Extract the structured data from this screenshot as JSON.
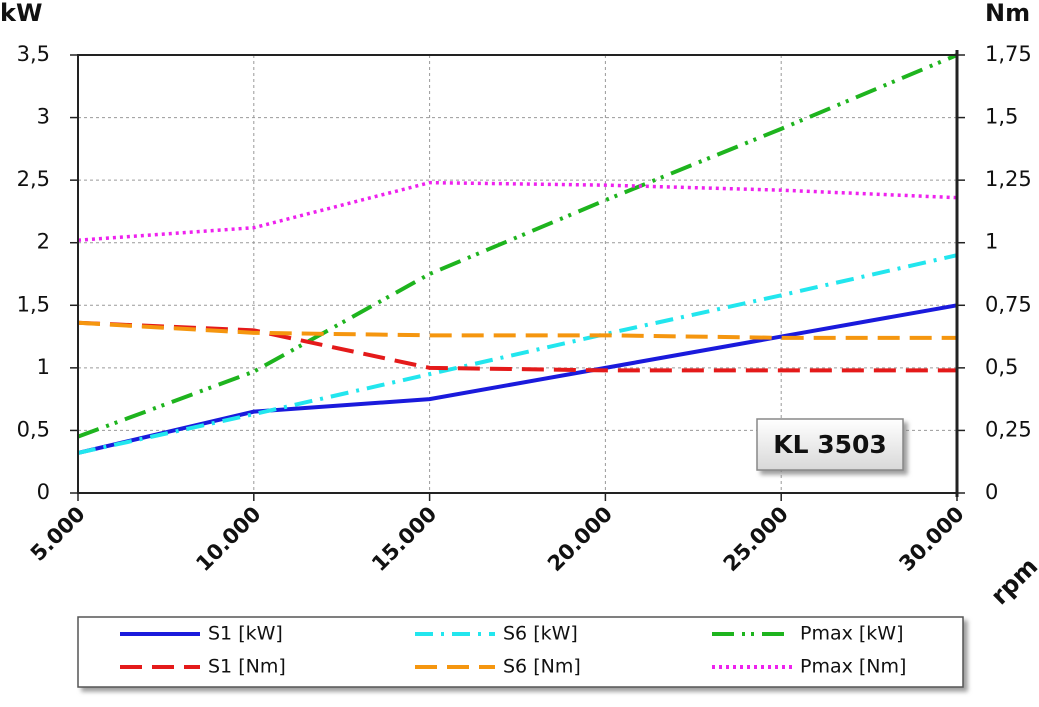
{
  "chart_data": {
    "type": "line",
    "y_label": "kW",
    "y2_label": "Nm",
    "x_label": "rpm",
    "annotation": "KL 3503",
    "x": [
      5000,
      10000,
      15000,
      20000,
      25000,
      30000
    ],
    "xlim": [
      5000,
      30000
    ],
    "xticks": [
      {
        "value": 5000,
        "label": "5.000"
      },
      {
        "value": 10000,
        "label": "10.000"
      },
      {
        "value": 15000,
        "label": "15.000"
      },
      {
        "value": 20000,
        "label": "20.000"
      },
      {
        "value": 25000,
        "label": "25.000"
      },
      {
        "value": 30000,
        "label": "30.000"
      }
    ],
    "ylim": [
      0,
      3.5
    ],
    "yticks": [
      0,
      {
        "value": 0.5,
        "label": "0,5"
      },
      1,
      {
        "value": 1.5,
        "label": "1,5"
      },
      2,
      {
        "value": 2.5,
        "label": "2,5"
      },
      3,
      {
        "value": 3.5,
        "label": "3,5"
      }
    ],
    "y2lim": [
      0,
      1.75
    ],
    "y2ticks": [
      0,
      {
        "value": 0.25,
        "label": "0,25"
      },
      {
        "value": 0.5,
        "label": "0,5"
      },
      {
        "value": 0.75,
        "label": "0,75"
      },
      1,
      {
        "value": 1.25,
        "label": "1,25"
      },
      {
        "value": 1.5,
        "label": "1,5"
      },
      {
        "value": 1.75,
        "label": "1,75"
      }
    ],
    "grid": true,
    "legend": "bottom",
    "series": [
      {
        "name": "S1 [kW]",
        "color": "#1a1adc",
        "style": "solid",
        "values": [
          0.32,
          0.65,
          0.75,
          1.0,
          1.25,
          1.5
        ]
      },
      {
        "name": "S6 [kW]",
        "color": "#22e6ee",
        "style": "dashdot",
        "values": [
          0.32,
          0.63,
          0.95,
          1.27,
          1.58,
          1.9
        ]
      },
      {
        "name": "Pmax [kW]",
        "color": "#1eb41e",
        "style": "dashdotdot",
        "values": [
          0.45,
          0.97,
          1.75,
          2.34,
          2.91,
          3.5
        ]
      },
      {
        "name": "S1 [Nm]",
        "color": "#e41a1a",
        "style": "dashed",
        "axis": "y2",
        "values": [
          0.68,
          0.65,
          0.5,
          0.49,
          0.49,
          0.49
        ]
      },
      {
        "name": "S6 [Nm]",
        "color": "#f5960f",
        "style": "dashed",
        "axis": "y2",
        "values": [
          0.68,
          0.64,
          0.63,
          0.63,
          0.62,
          0.62
        ]
      },
      {
        "name": "Pmax [Nm]",
        "color": "#ee22ee",
        "style": "dotted",
        "axis": "y2",
        "values": [
          1.01,
          1.06,
          1.24,
          1.23,
          1.21,
          1.18
        ]
      }
    ]
  }
}
